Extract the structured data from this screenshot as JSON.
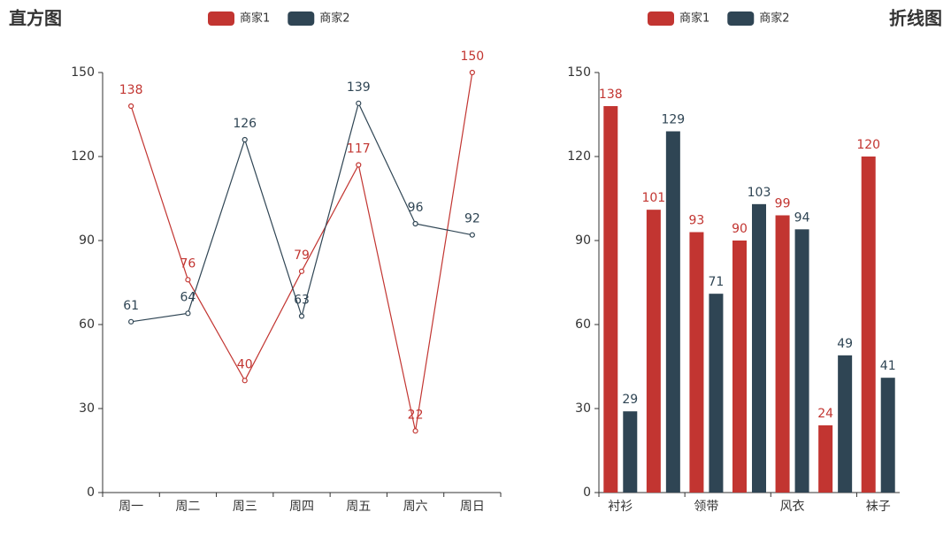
{
  "chart_data": [
    {
      "type": "line",
      "title": "直方图",
      "title_align": "left",
      "categories": [
        "周一",
        "周二",
        "周三",
        "周四",
        "周五",
        "周六",
        "周日"
      ],
      "series": [
        {
          "name": "商家1",
          "color": "#c23531",
          "values": [
            138,
            76,
            40,
            79,
            117,
            22,
            150
          ]
        },
        {
          "name": "商家2",
          "color": "#2f4554",
          "values": [
            61,
            64,
            126,
            63,
            139,
            96,
            92
          ]
        }
      ],
      "ylim": [
        0,
        150
      ],
      "yticks": [
        0,
        30,
        60,
        90,
        120,
        150
      ]
    },
    {
      "type": "bar",
      "title": "折线图",
      "title_align": "right",
      "categories": [
        "衬衫",
        null,
        "领带",
        null,
        "风衣",
        null,
        "袜子"
      ],
      "series": [
        {
          "name": "商家1",
          "color": "#c23531",
          "values": [
            138,
            101,
            93,
            90,
            99,
            24,
            120
          ]
        },
        {
          "name": "商家2",
          "color": "#2f4554",
          "values": [
            29,
            129,
            71,
            103,
            94,
            49,
            41
          ]
        }
      ],
      "ylim": [
        0,
        150
      ],
      "yticks": [
        0,
        30,
        60,
        90,
        120,
        150
      ]
    }
  ]
}
